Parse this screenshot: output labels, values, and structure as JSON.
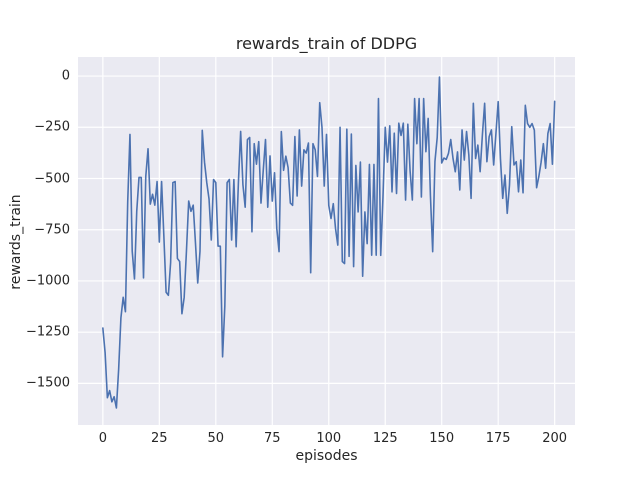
{
  "figure": {
    "background": "#ffffff"
  },
  "chart_data": {
    "type": "line",
    "title": "rewards_train of DDPG",
    "xlabel": "episodes",
    "ylabel": "rewards_train",
    "x_ticks": [
      0,
      25,
      50,
      75,
      100,
      125,
      150,
      175,
      200
    ],
    "x_tick_labels": [
      "0",
      "25",
      "50",
      "75",
      "100",
      "125",
      "150",
      "175",
      "200"
    ],
    "y_ticks": [
      0,
      -250,
      -500,
      -750,
      -1000,
      -1250,
      -1500
    ],
    "y_tick_labels": [
      "0",
      "−250",
      "−500",
      "−750",
      "−1000",
      "−1250",
      "−1500"
    ],
    "xlim": [
      -11,
      209
    ],
    "ylim": [
      -1703,
      93
    ],
    "grid": true,
    "legend": false,
    "style": {
      "axes_background": "#eaeaf2",
      "grid_color": "#ffffff",
      "line_color": "#4c72b0",
      "text_color": "#262626",
      "line_width": 1.6
    },
    "series": [
      {
        "name": "rewards_train",
        "x_start": 0,
        "x_step": 1,
        "values": [
          -1230,
          -1350,
          -1570,
          -1535,
          -1590,
          -1565,
          -1620,
          -1430,
          -1180,
          -1080,
          -1150,
          -615,
          -285,
          -855,
          -990,
          -660,
          -495,
          -495,
          -985,
          -490,
          -355,
          -625,
          -577,
          -630,
          -515,
          -810,
          -515,
          -780,
          -1055,
          -1070,
          -910,
          -520,
          -515,
          -890,
          -905,
          -1160,
          -1080,
          -855,
          -610,
          -660,
          -630,
          -815,
          -1010,
          -855,
          -265,
          -420,
          -520,
          -600,
          -800,
          -505,
          -520,
          -830,
          -830,
          -1370,
          -1120,
          -520,
          -505,
          -800,
          -505,
          -833,
          -520,
          -270,
          -530,
          -640,
          -310,
          -300,
          -760,
          -330,
          -430,
          -320,
          -620,
          -460,
          -310,
          -640,
          -390,
          -610,
          -472,
          -745,
          -857,
          -271,
          -460,
          -391,
          -447,
          -620,
          -631,
          -295,
          -585,
          -263,
          -537,
          -360,
          -376,
          -327,
          -960,
          -330,
          -360,
          -490,
          -130,
          -250,
          -537,
          -285,
          -631,
          -695,
          -623,
          -745,
          -825,
          -250,
          -905,
          -915,
          -259,
          -880,
          -283,
          -930,
          -436,
          -663,
          -420,
          -977,
          -663,
          -818,
          -431,
          -874,
          -431,
          -874,
          -110,
          -875,
          -590,
          -250,
          -420,
          -243,
          -565,
          -279,
          -573,
          -230,
          -290,
          -230,
          -605,
          -235,
          -463,
          -605,
          -110,
          -330,
          -110,
          -590,
          -110,
          -369,
          -207,
          -583,
          -857,
          -417,
          -300,
          -5,
          -424,
          -400,
          -407,
          -377,
          -310,
          -402,
          -467,
          -370,
          -556,
          -263,
          -410,
          -271,
          -385,
          -597,
          -133,
          -402,
          -337,
          -467,
          -288,
          -133,
          -418,
          -296,
          -263,
          -434,
          -280,
          -125,
          -402,
          -597,
          -483,
          -670,
          -532,
          -247,
          -434,
          -418,
          -565,
          -410,
          -570,
          -143,
          -232,
          -250,
          -232,
          -264,
          -545,
          -490,
          -420,
          -330,
          -450,
          -280,
          -232,
          -430,
          -123
        ]
      }
    ]
  }
}
